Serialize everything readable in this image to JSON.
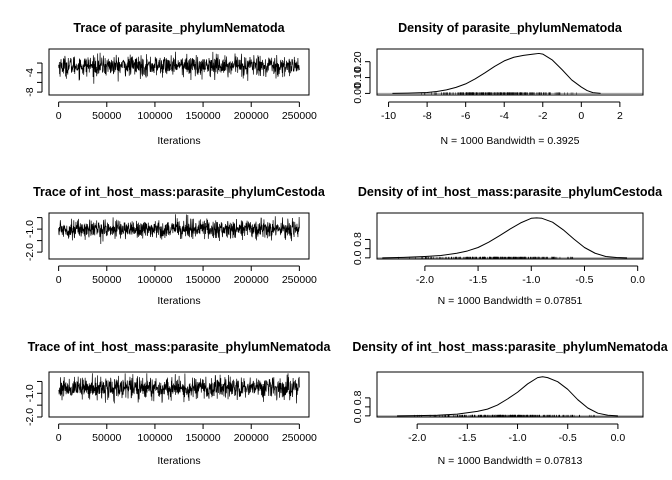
{
  "chart_data": [
    {
      "type": "line",
      "panel": "trace",
      "title": "Trace of parasite_phylumNematoda",
      "xlabel": "Iterations",
      "x_ticks": [
        "0",
        "50000",
        "100000",
        "150000",
        "200000",
        "250000"
      ],
      "y_ticks": [
        "-8",
        "-6",
        "-4",
        "-2"
      ],
      "xlim": [
        -10000,
        260000
      ],
      "ylim": [
        -8.6,
        0.9
      ],
      "grid": false,
      "summary": {
        "n": 1000,
        "mean": -2.6,
        "sd": 1.05,
        "min": -8.0,
        "max": 0.5,
        "x_start": 1,
        "x_end": 250000
      }
    },
    {
      "type": "line",
      "panel": "density",
      "title": "Density of parasite_phylumNematoda",
      "xlabel": "N = 1000   Bandwidth = 0.3925",
      "x_ticks": [
        "-10",
        "-8",
        "-6",
        "-4",
        "-2",
        "0",
        "2"
      ],
      "y_ticks": [
        "0.00",
        "0.10",
        "0.20"
      ],
      "xlim": [
        -10.6,
        3.2
      ],
      "ylim": [
        -0.01,
        0.28
      ],
      "grid": false,
      "x": [
        -9.8,
        -9.0,
        -8.0,
        -7.5,
        -7.0,
        -6.5,
        -6.0,
        -5.5,
        -5.0,
        -4.5,
        -4.0,
        -3.5,
        -3.0,
        -2.5,
        -2.2,
        -2.0,
        -1.5,
        -1.0,
        -0.5,
        0.0,
        0.3,
        0.6,
        1.0
      ],
      "values": [
        0.0,
        0.002,
        0.006,
        0.012,
        0.022,
        0.038,
        0.06,
        0.092,
        0.13,
        0.17,
        0.205,
        0.228,
        0.24,
        0.248,
        0.252,
        0.248,
        0.21,
        0.15,
        0.085,
        0.04,
        0.018,
        0.005,
        0.0
      ],
      "rug_range": [
        -9.8,
        0.9
      ]
    },
    {
      "type": "line",
      "panel": "trace",
      "title": "Trace of int_host_mass:parasite_phylumCestoda",
      "xlabel": "Iterations",
      "x_ticks": [
        "0",
        "50000",
        "100000",
        "150000",
        "200000",
        "250000"
      ],
      "y_ticks": [
        "-2.0",
        "-1.5",
        "-1.0",
        "-0.5"
      ],
      "xlim": [
        -10000,
        260000
      ],
      "ylim": [
        -2.3,
        -0.3
      ],
      "grid": false,
      "summary": {
        "n": 1000,
        "mean": -1.0,
        "sd": 0.2,
        "min": -2.1,
        "max": -0.35,
        "x_start": 1,
        "x_end": 250000
      }
    },
    {
      "type": "line",
      "panel": "density",
      "title": "Density of int_host_mass:parasite_phylumCestoda",
      "xlabel": "N = 1000   Bandwidth = 0.07851",
      "x_ticks": [
        "-2.0",
        "-1.5",
        "-1.0",
        "-0.5",
        "0.0"
      ],
      "y_ticks": [
        "0.0",
        "0.4",
        "0.8"
      ],
      "xlim": [
        -2.45,
        0.05
      ],
      "ylim": [
        -0.05,
        1.95
      ],
      "grid": false,
      "x": [
        -2.4,
        -2.2,
        -2.0,
        -1.85,
        -1.7,
        -1.6,
        -1.5,
        -1.4,
        -1.3,
        -1.2,
        -1.1,
        -1.0,
        -0.95,
        -0.9,
        -0.8,
        -0.7,
        -0.6,
        -0.5,
        -0.4,
        -0.3,
        -0.2,
        -0.1
      ],
      "values": [
        0.0,
        0.02,
        0.06,
        0.1,
        0.2,
        0.3,
        0.45,
        0.68,
        0.96,
        1.25,
        1.52,
        1.72,
        1.74,
        1.72,
        1.55,
        1.22,
        0.82,
        0.45,
        0.2,
        0.06,
        0.015,
        0.0
      ],
      "rug_range": [
        -2.4,
        -0.25
      ]
    },
    {
      "type": "line",
      "panel": "trace",
      "title": "Trace of int_host_mass:parasite_phylumNematoda",
      "xlabel": "Iterations",
      "x_ticks": [
        "0",
        "50000",
        "100000",
        "150000",
        "200000",
        "250000"
      ],
      "y_ticks": [
        "-2.0",
        "-1.5",
        "-1.0",
        "-0.5"
      ],
      "xlim": [
        -10000,
        260000
      ],
      "ylim": [
        -2.0,
        -0.1
      ],
      "grid": false,
      "summary": {
        "n": 1000,
        "mean": -0.78,
        "sd": 0.23,
        "min": -1.65,
        "max": -0.15,
        "x_start": 1,
        "x_end": 250000
      }
    },
    {
      "type": "line",
      "panel": "density",
      "title": "Density of int_host_mass:parasite_phylumNematoda",
      "xlabel": "N = 1000   Bandwidth = 0.07813",
      "x_ticks": [
        "-2.0",
        "-1.5",
        "-1.0",
        "-0.5",
        "0.0"
      ],
      "y_ticks": [
        "0.0",
        "0.4",
        "0.8"
      ],
      "xlim": [
        -2.4,
        0.25
      ],
      "ylim": [
        -0.05,
        1.95
      ],
      "grid": false,
      "x": [
        -2.2,
        -2.0,
        -1.8,
        -1.6,
        -1.4,
        -1.3,
        -1.2,
        -1.1,
        -1.0,
        -0.9,
        -0.8,
        -0.75,
        -0.7,
        -0.6,
        -0.5,
        -0.4,
        -0.3,
        -0.2,
        -0.1,
        0.0
      ],
      "values": [
        0.0,
        0.01,
        0.03,
        0.08,
        0.2,
        0.3,
        0.48,
        0.75,
        1.05,
        1.42,
        1.7,
        1.74,
        1.7,
        1.52,
        1.18,
        0.72,
        0.35,
        0.12,
        0.03,
        0.0
      ],
      "rug_range": [
        -2.2,
        0.0
      ]
    }
  ]
}
